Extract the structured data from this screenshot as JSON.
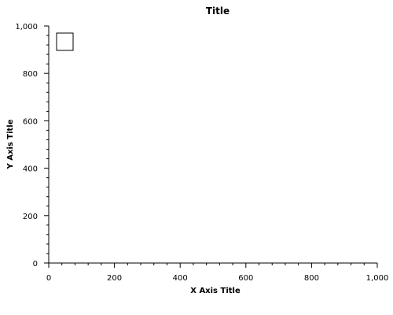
{
  "chart_data": {
    "type": "scatter",
    "title": "Title",
    "xlabel": "X Axis Title",
    "ylabel": "Y Axis Title",
    "xlim": [
      0,
      1000
    ],
    "ylim": [
      0,
      1000
    ],
    "x_ticks": [
      0,
      200,
      400,
      600,
      800,
      1000
    ],
    "y_ticks": [
      0,
      200,
      400,
      600,
      800,
      1000
    ],
    "x_tick_labels": [
      "0",
      "200",
      "400",
      "600",
      "800",
      "1,000"
    ],
    "y_tick_labels": [
      "0",
      "200",
      "400",
      "600",
      "800",
      "1,000"
    ],
    "minor_ticks_per_major": 4,
    "grid": false,
    "legend": "top-left",
    "legend_entries": [],
    "series": [],
    "colors": {
      "axis": "#000000",
      "legend_border": "#000000",
      "background": "#ffffff"
    }
  }
}
